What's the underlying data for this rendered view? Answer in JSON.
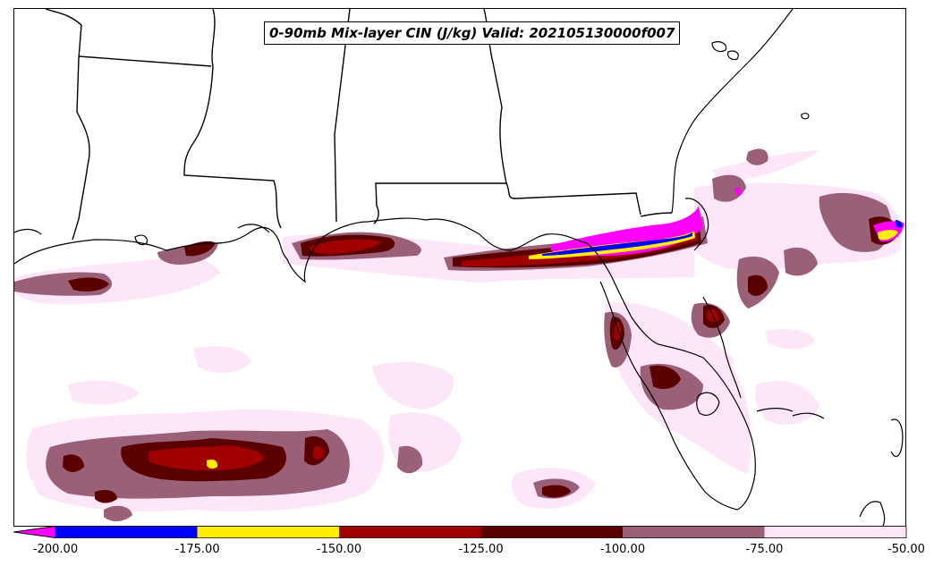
{
  "title": "0-90mb Mix-layer CIN (J/kg) Valid: 202105130000f007",
  "colorbar": {
    "ticks": [
      "-200.00",
      "-175.00",
      "-150.00",
      "-125.00",
      "-100.00",
      "-75.00",
      "-50.00"
    ],
    "bins": [
      {
        "range": [
          -200,
          -175
        ],
        "color": "#0000ff"
      },
      {
        "range": [
          -175,
          -150
        ],
        "color": "#ffee00"
      },
      {
        "range": [
          -150,
          -125
        ],
        "color": "#a00000"
      },
      {
        "range": [
          -125,
          -100
        ],
        "color": "#5a0000"
      },
      {
        "range": [
          -100,
          -75
        ],
        "color": "#9a6078"
      },
      {
        "range": [
          -75,
          -50
        ],
        "color": "#fde6f8"
      }
    ],
    "extend_color": "#ff00ff"
  },
  "colors": {
    "very_light": "#fde6f8",
    "mauve": "#9a6078",
    "dark_maroon": "#5a0000",
    "maroon": "#a00000",
    "yellow": "#ffee00",
    "blue": "#0000ff",
    "magenta": "#ff00ff",
    "boundary": "#000000"
  }
}
